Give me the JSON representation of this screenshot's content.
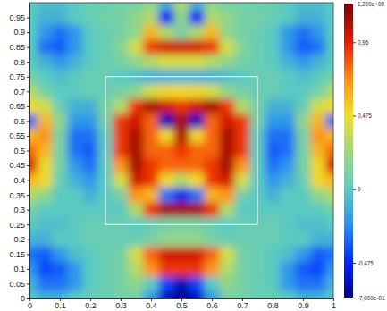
{
  "chart_data": {
    "type": "heatmap",
    "x": [
      0,
      0.05,
      0.1,
      0.15,
      0.2,
      0.25,
      0.3,
      0.35,
      0.4,
      0.45,
      0.5,
      0.55,
      0.6,
      0.65,
      0.7,
      0.75,
      0.8,
      0.85,
      0.9,
      0.95,
      1
    ],
    "y": [
      1,
      0.95,
      0.9,
      0.85,
      0.8,
      0.75,
      0.7,
      0.65,
      0.6,
      0.55,
      0.5,
      0.45,
      0.4,
      0.35,
      0.3,
      0.25,
      0.2,
      0.15,
      0.1,
      0.05,
      0
    ],
    "z": [
      [
        0,
        -0.05,
        -0.05,
        0,
        0.05,
        0.05,
        0.1,
        0.1,
        0.2,
        -0.1,
        0.3,
        -0.1,
        0.2,
        0.1,
        0.1,
        0.05,
        0.05,
        0,
        -0.05,
        -0.05,
        0
      ],
      [
        0,
        -0.1,
        -0.1,
        0,
        0.05,
        0.1,
        0.1,
        0.2,
        0.3,
        -0.5,
        0.2,
        -0.5,
        0.3,
        0.2,
        0.1,
        0.1,
        0.05,
        0,
        -0.1,
        -0.1,
        0
      ],
      [
        0,
        -0.2,
        -0.3,
        -0.2,
        0,
        0.05,
        0.1,
        0.2,
        0.6,
        0.3,
        0.1,
        0.3,
        0.6,
        0.2,
        0.1,
        0.05,
        0,
        -0.2,
        -0.3,
        -0.2,
        0
      ],
      [
        0,
        -0.3,
        -0.35,
        -0.2,
        0,
        0.05,
        0.15,
        0.4,
        0.9,
        1,
        1,
        1,
        0.9,
        0.4,
        0.15,
        0.05,
        0,
        -0.2,
        -0.35,
        -0.3,
        0
      ],
      [
        0,
        -0.1,
        -0.2,
        -0.1,
        0,
        0.05,
        0.1,
        0.2,
        0.3,
        0.4,
        0.4,
        0.4,
        0.3,
        0.2,
        0.1,
        0.05,
        0,
        -0.1,
        -0.2,
        -0.1,
        0
      ],
      [
        0.1,
        0,
        -0.05,
        0,
        0.05,
        0.05,
        0,
        -0.05,
        -0.1,
        -0.1,
        -0.1,
        -0.1,
        -0.1,
        -0.05,
        0,
        0.05,
        0.05,
        0,
        -0.05,
        0,
        0.1
      ],
      [
        0.3,
        0.1,
        0,
        0,
        0.05,
        0.05,
        0.1,
        0.2,
        0.4,
        0.5,
        0.5,
        0.5,
        0.4,
        0.2,
        0.1,
        0.05,
        0.05,
        0,
        0,
        0.1,
        0.3
      ],
      [
        0.5,
        0.4,
        0.05,
        -0.1,
        -0.1,
        0.1,
        0.3,
        0.9,
        1.1,
        1,
        0.9,
        1,
        1.1,
        0.9,
        0.3,
        0.1,
        -0.1,
        -0.1,
        0.05,
        0.4,
        0.5
      ],
      [
        -0.3,
        0.6,
        0.2,
        -0.2,
        -0.2,
        0.1,
        0.9,
        1,
        0.8,
        -0.6,
        1.1,
        -0.6,
        0.8,
        1,
        0.9,
        0.1,
        -0.2,
        -0.2,
        0.2,
        0.6,
        -0.3
      ],
      [
        0.6,
        0.7,
        0.1,
        -0.3,
        -0.3,
        0,
        0.9,
        1.1,
        0.8,
        0.5,
        1.1,
        0.5,
        0.8,
        1.1,
        0.9,
        0,
        -0.3,
        -0.3,
        0.1,
        0.7,
        0.6
      ],
      [
        0.8,
        0.6,
        0.1,
        -0.3,
        -0.35,
        0,
        0.9,
        1.1,
        0.8,
        0.8,
        0.9,
        0.8,
        0.8,
        1.1,
        0.9,
        0,
        -0.35,
        -0.3,
        0.1,
        0.6,
        0.8
      ],
      [
        1,
        0.5,
        0.1,
        -0.2,
        -0.3,
        0,
        0.7,
        1.1,
        0.9,
        0.8,
        0.8,
        0.8,
        0.9,
        1.1,
        0.7,
        0,
        -0.3,
        -0.2,
        0.1,
        0.5,
        1
      ],
      [
        0.6,
        0.5,
        0.05,
        -0.1,
        -0.2,
        0,
        0.4,
        1,
        0.9,
        0.5,
        0.3,
        0.5,
        0.9,
        1,
        0.4,
        0,
        -0.2,
        -0.1,
        0.05,
        0.5,
        0.6
      ],
      [
        0.3,
        0.2,
        0,
        0,
        -0.1,
        0,
        0.1,
        0.7,
        0.6,
        -0.3,
        -0.5,
        -0.3,
        0.6,
        0.7,
        0.1,
        0,
        -0.1,
        0,
        0,
        0.2,
        0.3
      ],
      [
        0.1,
        0,
        0,
        0,
        0,
        0,
        0,
        0.3,
        0.9,
        1.1,
        1.1,
        1.1,
        0.9,
        0.3,
        0,
        0,
        0,
        0,
        0,
        0,
        0.1
      ],
      [
        0,
        -0.05,
        -0.05,
        0,
        0.05,
        0.05,
        0.05,
        0,
        0.05,
        0.1,
        0.1,
        0.1,
        0.05,
        0,
        0.05,
        0.05,
        0.05,
        0,
        -0.05,
        -0.05,
        0
      ],
      [
        -0.1,
        -0.1,
        0,
        0,
        0.05,
        0.05,
        0.05,
        0.05,
        0.1,
        0.2,
        0.2,
        0.2,
        0.1,
        0.05,
        0.05,
        0.05,
        0.05,
        0,
        0,
        -0.1,
        -0.1
      ],
      [
        -0.3,
        -0.35,
        -0.2,
        -0.05,
        0,
        0.05,
        0.1,
        0.4,
        0.8,
        1,
        1,
        1,
        0.8,
        0.4,
        0.1,
        0.05,
        0,
        -0.05,
        -0.2,
        -0.35,
        -0.3
      ],
      [
        -0.2,
        -0.4,
        -0.35,
        -0.2,
        0,
        0.05,
        0.1,
        0.3,
        0.7,
        0.9,
        0.9,
        0.9,
        0.7,
        0.3,
        0.1,
        0.05,
        0,
        -0.2,
        -0.35,
        -0.4,
        -0.2
      ],
      [
        -0.1,
        -0.3,
        -0.3,
        -0.2,
        0,
        0.05,
        0.1,
        0.2,
        0,
        -0.4,
        -0.6,
        -0.4,
        0,
        0.2,
        0.1,
        0.05,
        0,
        -0.2,
        -0.3,
        -0.3,
        -0.1
      ],
      [
        0,
        -0.1,
        -0.1,
        0,
        0.05,
        0.05,
        0.1,
        0.1,
        -0.2,
        -0.6,
        -0.7,
        -0.6,
        -0.2,
        0.1,
        0.1,
        0.05,
        0.05,
        0,
        -0.1,
        -0.1,
        0
      ]
    ],
    "xlim": [
      0,
      1
    ],
    "ylim": [
      0,
      1
    ],
    "xticks": [
      0,
      0.1,
      0.2,
      0.3,
      0.4,
      0.5,
      0.6,
      0.7,
      0.8,
      0.9,
      1
    ],
    "yticks": [
      0,
      0.05,
      0.1,
      0.15,
      0.2,
      0.25,
      0.3,
      0.35,
      0.4,
      0.45,
      0.5,
      0.55,
      0.6,
      0.65,
      0.7,
      0.75,
      0.8,
      0.85,
      0.9,
      0.95
    ],
    "color_range": [
      -0.7,
      1.2
    ],
    "color_ticks": [
      {
        "value": 1.2,
        "label": "1,200e+00"
      },
      {
        "value": 0.95,
        "label": "0,95"
      },
      {
        "value": 0.475,
        "label": "0,475"
      },
      0,
      {
        "value": -0.475,
        "label": "-0,475"
      },
      {
        "value": -0.7,
        "label": "-7,000e-01"
      }
    ],
    "box": {
      "x": [
        0.25,
        0.75
      ],
      "y": [
        0.25,
        0.75
      ]
    }
  }
}
